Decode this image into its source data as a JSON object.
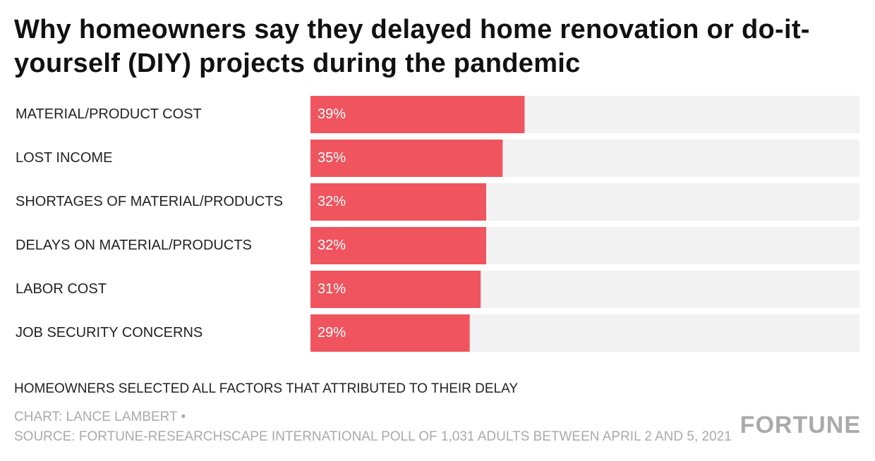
{
  "chart_data": {
    "type": "bar",
    "orientation": "horizontal",
    "title": "Why homeowners say they delayed home renovation or do-it-yourself (DIY) projects during the pandemic",
    "categories": [
      "MATERIAL/PRODUCT COST",
      "LOST INCOME",
      "SHORTAGES OF MATERIAL/PRODUCTS",
      "DELAYS ON MATERIAL/PRODUCTS",
      "LABOR COST",
      "JOB SECURITY CONCERNS"
    ],
    "values": [
      39,
      35,
      32,
      32,
      31,
      29
    ],
    "value_labels": [
      "39%",
      "35%",
      "32%",
      "32%",
      "31%",
      "29%"
    ],
    "color": "#f0545e",
    "xlim": [
      0,
      100
    ],
    "note": "HOMEOWNERS SELECTED ALL FACTORS THAT ATTRIBUTED TO THEIR DELAY",
    "credit": "CHART: LANCE LAMBERT •",
    "source": "SOURCE: FORTUNE-RESEARCHSCAPE INTERNATIONAL POLL OF 1,031 ADULTS BETWEEN APRIL 2 AND 5, 2021",
    "logo": "FORTUNE"
  }
}
